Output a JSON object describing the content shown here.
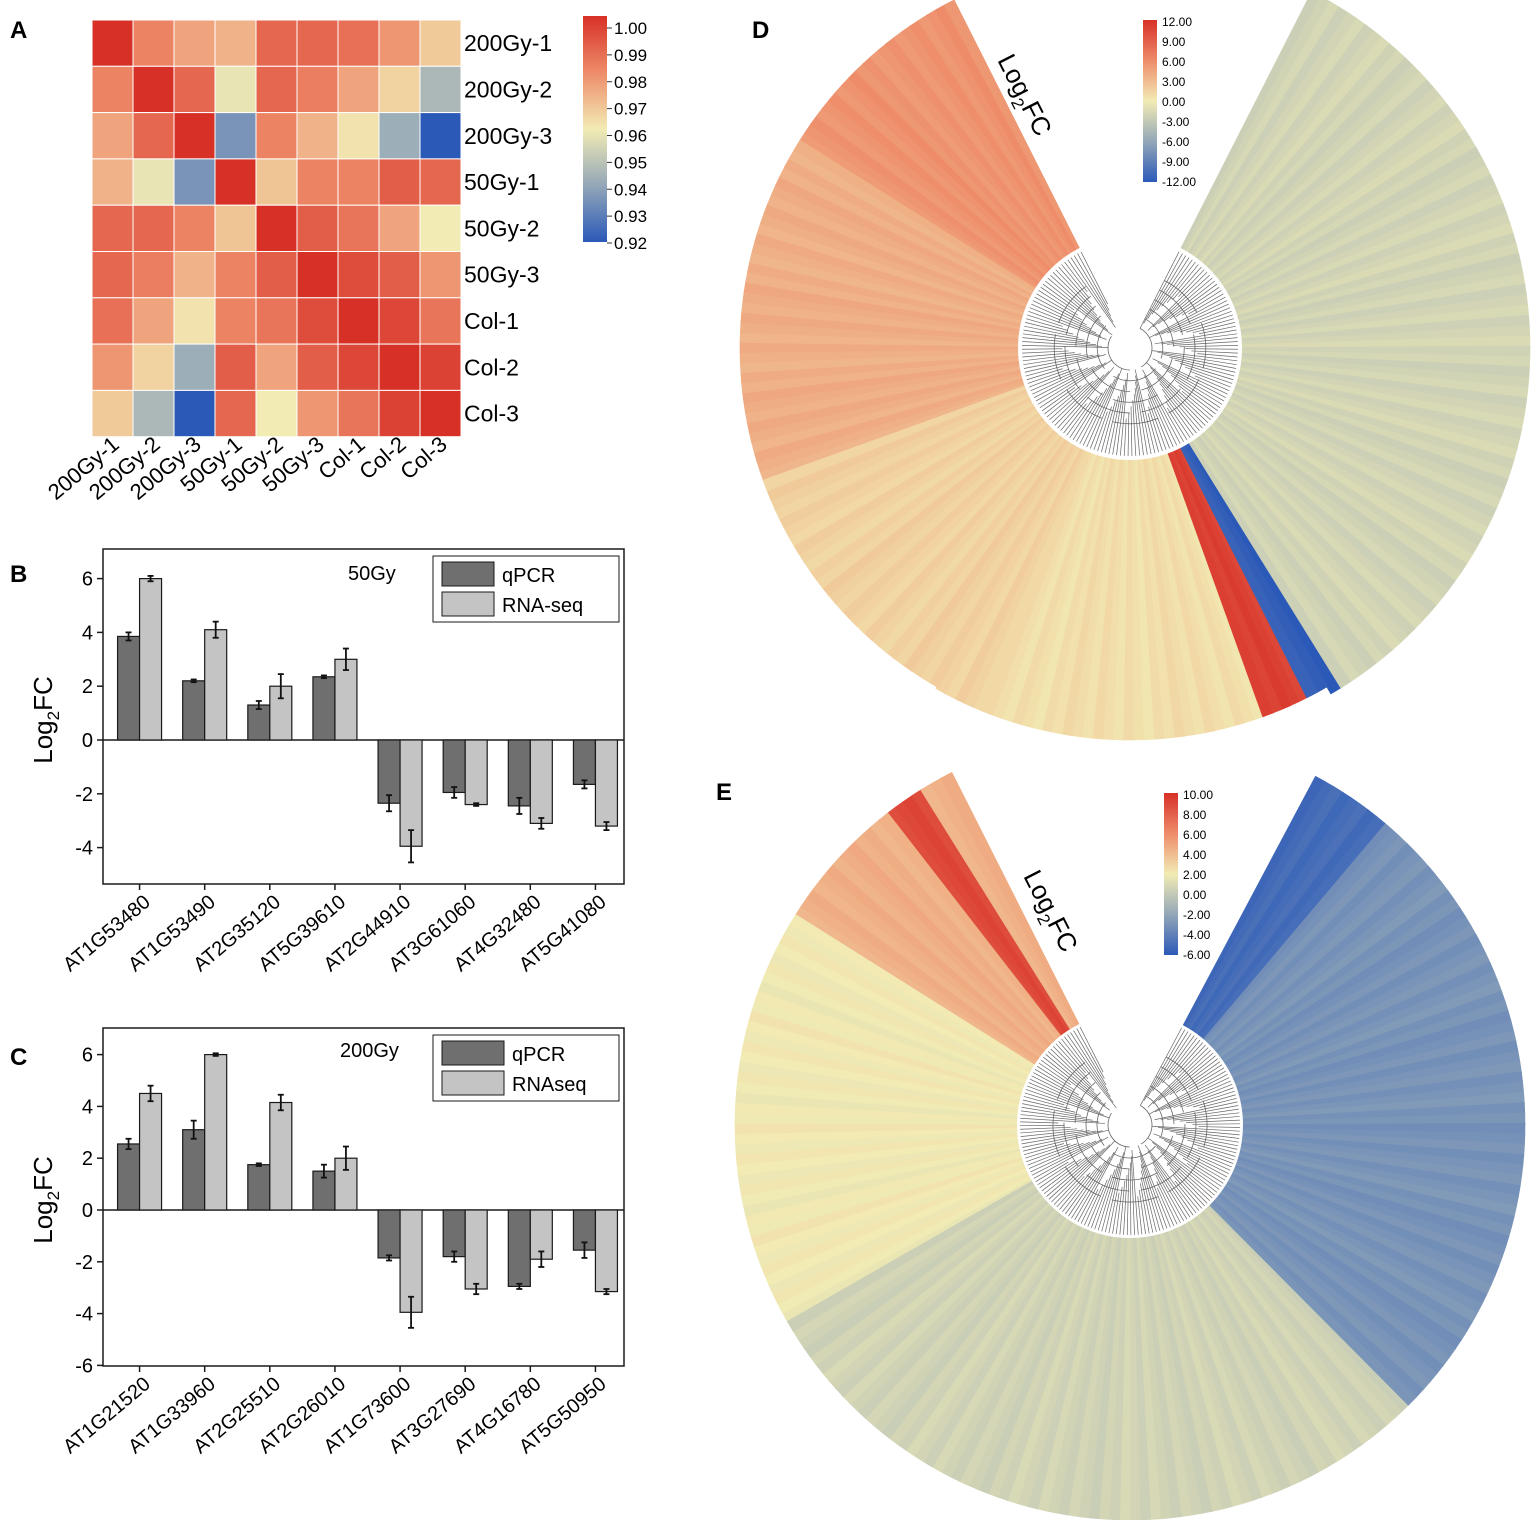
{
  "panel_letters": {
    "a": "A",
    "b": "B",
    "c": "C",
    "d": "D",
    "e": "E"
  },
  "fc_label": {
    "base": "Log",
    "sub": "2",
    "tail": "FC"
  },
  "colors": {
    "high": "#d73027",
    "mid": "#f2ebb4",
    "low": "#2b59b8",
    "qpcr": "#6f6f6f",
    "rnaseq": "#c4c4c4",
    "edge": "#1a1a1a",
    "tree": "#666666"
  },
  "chart_data": [
    {
      "id": "A",
      "type": "heatmap",
      "title": "",
      "rows": [
        "200Gy-1",
        "200Gy-2",
        "200Gy-3",
        "50Gy-1",
        "50Gy-2",
        "50Gy-3",
        "Col-1",
        "Col-2",
        "Col-3"
      ],
      "columns": [
        "200Gy-1",
        "200Gy-2",
        "200Gy-3",
        "50Gy-1",
        "50Gy-2",
        "50Gy-3",
        "Col-1",
        "Col-2",
        "Col-3"
      ],
      "values": [
        [
          1.0,
          0.982,
          0.975,
          0.972,
          0.988,
          0.988,
          0.986,
          0.978,
          0.967
        ],
        [
          0.982,
          1.0,
          0.988,
          0.958,
          0.988,
          0.983,
          0.975,
          0.965,
          0.945
        ],
        [
          0.975,
          0.988,
          1.0,
          0.935,
          0.982,
          0.972,
          0.962,
          0.942,
          0.92
        ],
        [
          0.972,
          0.958,
          0.935,
          1.0,
          0.968,
          0.982,
          0.982,
          0.99,
          0.988
        ],
        [
          0.988,
          0.988,
          0.982,
          0.968,
          1.0,
          0.99,
          0.985,
          0.975,
          0.96
        ],
        [
          0.988,
          0.983,
          0.972,
          0.982,
          0.99,
          1.0,
          0.994,
          0.99,
          0.978
        ],
        [
          0.986,
          0.975,
          0.962,
          0.982,
          0.985,
          0.994,
          1.0,
          0.995,
          0.985
        ],
        [
          0.978,
          0.965,
          0.942,
          0.99,
          0.975,
          0.99,
          0.995,
          1.0,
          0.996
        ],
        [
          0.967,
          0.945,
          0.92,
          0.988,
          0.96,
          0.978,
          0.985,
          0.996,
          1.0
        ]
      ],
      "colorbar": {
        "ticks": [
          "1.00",
          "0.99",
          "0.98",
          "0.97",
          "0.96",
          "0.95",
          "0.94",
          "0.93",
          "0.92"
        ],
        "range": [
          0.92,
          1.0
        ]
      }
    },
    {
      "id": "B",
      "type": "bar",
      "title": "50Gy",
      "ylabel": "Log2FC",
      "ylim": [
        -5.4,
        7
      ],
      "yticks": [
        "6",
        "4",
        "2",
        "0",
        "-2",
        "-4"
      ],
      "categories": [
        "AT1G53480",
        "AT1G53490",
        "AT2G35120",
        "AT5G39610",
        "AT2G44910",
        "AT3G61060",
        "AT4G32480",
        "AT5G41080"
      ],
      "series": [
        {
          "name": "qPCR",
          "values": [
            3.85,
            2.2,
            1.3,
            2.35,
            -2.35,
            -1.95,
            -2.45,
            -1.65
          ],
          "errors": [
            0.15,
            0.05,
            0.15,
            0.05,
            0.3,
            0.2,
            0.3,
            0.15
          ]
        },
        {
          "name": "RNA-seq",
          "values": [
            6.0,
            4.1,
            2.0,
            3.0,
            -3.95,
            -2.4,
            -3.1,
            -3.2
          ],
          "errors": [
            0.1,
            0.3,
            0.45,
            0.4,
            0.6,
            0.05,
            0.2,
            0.15
          ]
        }
      ]
    },
    {
      "id": "C",
      "type": "bar",
      "title": "200Gy",
      "ylabel": "Log2FC",
      "ylim": [
        -6.5,
        7
      ],
      "yticks": [
        "6",
        "4",
        "2",
        "0",
        "-2",
        "-4",
        "-6"
      ],
      "categories": [
        "AT1G21520",
        "AT1G33960",
        "AT2G25510",
        "AT2G26010",
        "AT1G73600",
        "AT3G27690",
        "AT4G16780",
        "AT5G50950"
      ],
      "series": [
        {
          "name": "qPCR",
          "values": [
            2.55,
            3.1,
            1.75,
            1.5,
            -1.85,
            -1.8,
            -2.95,
            -1.55
          ],
          "errors": [
            0.2,
            0.35,
            0.05,
            0.25,
            0.1,
            0.2,
            0.1,
            0.3
          ]
        },
        {
          "name": "RNAseq",
          "values": [
            4.5,
            6.0,
            4.15,
            2.0,
            -3.95,
            -3.05,
            -1.9,
            -3.15
          ],
          "errors": [
            0.3,
            0.05,
            0.3,
            0.45,
            0.6,
            0.2,
            0.3,
            0.1
          ]
        }
      ]
    },
    {
      "id": "D",
      "type": "heatmap",
      "title": "",
      "label": "Log2FC",
      "colorbar": {
        "ticks": [
          "12.00",
          "9.00",
          "6.00",
          "3.00",
          "0.00",
          "-3.00",
          "-6.00",
          "-9.00",
          "-12.00"
        ],
        "range": [
          -12,
          12
        ]
      },
      "segments": [
        {
          "sector": "upper-left wedge",
          "value": 5.5
        },
        {
          "sector": "left",
          "value": 3.8
        },
        {
          "sector": "bottom-left",
          "value": 1.6
        },
        {
          "sector": "bottom",
          "value": 0.8
        },
        {
          "sector": "lower-right band (red)",
          "value": 11.0
        },
        {
          "sector": "lower-right band (blue)",
          "value": -11.5
        },
        {
          "sector": "right",
          "value": -2.0
        }
      ]
    },
    {
      "id": "E",
      "type": "heatmap",
      "title": "",
      "label": "Log2FC",
      "colorbar": {
        "ticks": [
          "10.00",
          "8.00",
          "6.00",
          "4.00",
          "2.00",
          "0.00",
          "-2.00",
          "-4.00",
          "-6.00"
        ],
        "range": [
          -6,
          10
        ]
      },
      "segments": [
        {
          "sector": "upper-left wedge (red)",
          "value": 9.0
        },
        {
          "sector": "upper-left wedge",
          "value": 4.5
        },
        {
          "sector": "left",
          "value": 2.0
        },
        {
          "sector": "bottom",
          "value": 0.6
        },
        {
          "sector": "right",
          "value": -3.0
        },
        {
          "sector": "upper-right wedge",
          "value": -5.0
        }
      ]
    }
  ]
}
